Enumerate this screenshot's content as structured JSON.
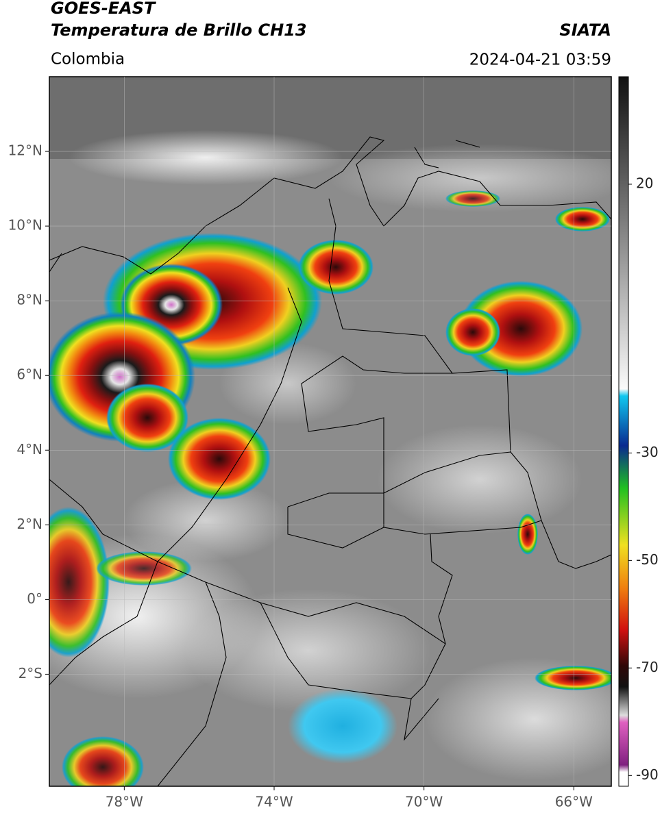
{
  "header": {
    "satellite": "GOES-EAST",
    "product": "Temperatura de Brillo CH13",
    "source": "SIATA",
    "region": "Colombia",
    "timestamp": "2024-04-21 03:59"
  },
  "map": {
    "xlim": [
      -80,
      -65
    ],
    "ylim": [
      -5,
      14
    ],
    "grid": true,
    "xticks": [
      {
        "value": -78,
        "label": "78°W"
      },
      {
        "value": -74,
        "label": "74°W"
      },
      {
        "value": -70,
        "label": "70°W"
      },
      {
        "value": -66,
        "label": "66°W"
      }
    ],
    "yticks": [
      {
        "value": 12,
        "label": "12°N"
      },
      {
        "value": 10,
        "label": "10°N"
      },
      {
        "value": 8,
        "label": "8°N"
      },
      {
        "value": 6,
        "label": "6°N"
      },
      {
        "value": 4,
        "label": "4°N"
      },
      {
        "value": 2,
        "label": "2°N"
      },
      {
        "value": 0,
        "label": "0°"
      },
      {
        "value": -2,
        "label": "2°S"
      }
    ]
  },
  "colorbar": {
    "lim": [
      -92,
      40
    ],
    "ticks": [
      20,
      -30,
      -50,
      -70,
      -90
    ]
  }
}
